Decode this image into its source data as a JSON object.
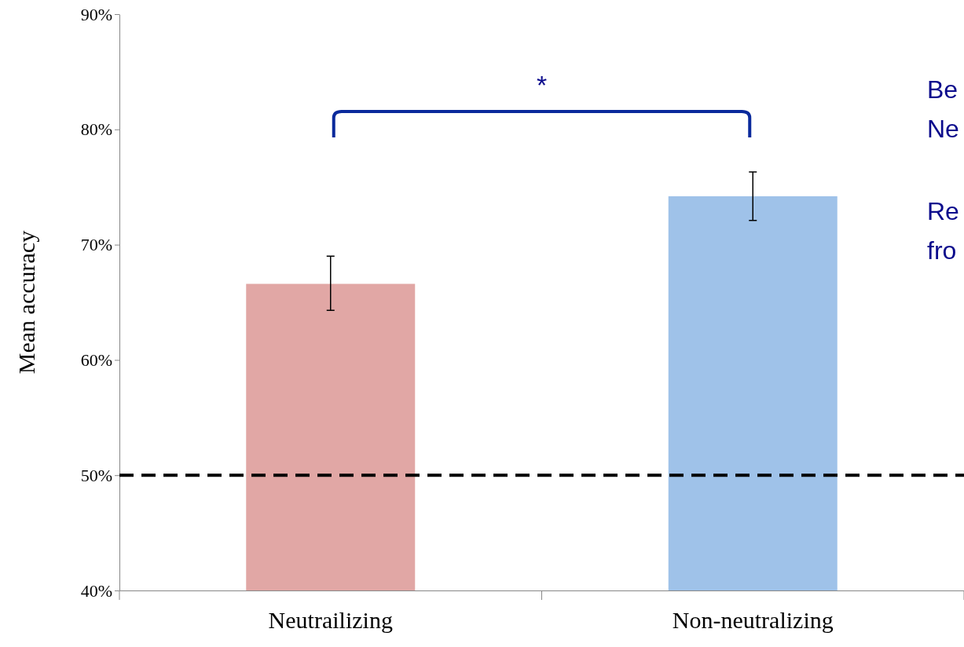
{
  "chart_data": {
    "type": "bar",
    "ylabel": "Mean accuracy",
    "categories": [
      "Neutrailizing",
      "Non-neutralizing"
    ],
    "values": [
      66.6,
      74.2
    ],
    "colors": [
      "#e1a7a5",
      "#9fc2e9"
    ],
    "errors": [
      [
        64.3,
        69.0
      ],
      [
        72.1,
        76.3
      ]
    ],
    "ylim": [
      40,
      90
    ],
    "yticks": [
      {
        "value": 40,
        "label": "40%"
      },
      {
        "value": 50,
        "label": "50%"
      },
      {
        "value": 60,
        "label": "60%"
      },
      {
        "value": 70,
        "label": "70%"
      },
      {
        "value": 80,
        "label": "80%"
      },
      {
        "value": 90,
        "label": "90%"
      }
    ],
    "ref_lines": [
      {
        "axis": "y",
        "value": 50,
        "label": null,
        "color": "#000000",
        "line_style": "dashed"
      }
    ],
    "annotations": [
      "*",
      "Be",
      "Ne",
      "Re",
      "fro"
    ],
    "grid": false
  }
}
